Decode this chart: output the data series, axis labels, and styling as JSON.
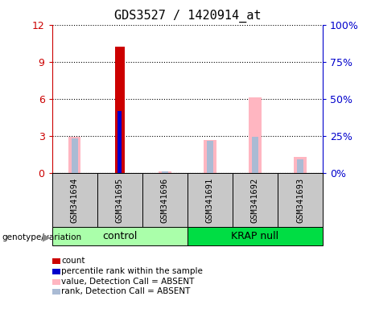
{
  "title": "GDS3527 / 1420914_at",
  "samples": [
    "GSM341694",
    "GSM341695",
    "GSM341696",
    "GSM341691",
    "GSM341692",
    "GSM341693"
  ],
  "groups": [
    "control",
    "control",
    "control",
    "KRAP null",
    "KRAP null",
    "KRAP null"
  ],
  "ylim_left": [
    0,
    12
  ],
  "ylim_right": [
    0,
    100
  ],
  "yticks_left": [
    0,
    3,
    6,
    9,
    12
  ],
  "ytick_labels_left": [
    "0",
    "3",
    "6",
    "9",
    "12"
  ],
  "yticks_right": [
    0,
    25,
    50,
    75,
    100
  ],
  "ytick_labels_right": [
    "0%",
    "25%",
    "50%",
    "75%",
    "100%"
  ],
  "count_values": [
    0,
    10.2,
    0,
    0,
    0,
    0
  ],
  "percentile_values": [
    0,
    5.0,
    0,
    0,
    0,
    0
  ],
  "absent_value_values": [
    2.9,
    0,
    0.12,
    2.7,
    6.1,
    1.3
  ],
  "absent_rank_values": [
    2.8,
    0,
    0.12,
    2.6,
    2.9,
    1.1
  ],
  "absent_bar_width": 0.28,
  "rank_bar_width": 0.14,
  "count_bar_width": 0.22,
  "pct_bar_width": 0.1,
  "count_color": "#CC0000",
  "percentile_color": "#0000CC",
  "absent_value_color": "#FFB6C1",
  "absent_rank_color": "#AABBD4",
  "bg_color": "#FFFFFF",
  "plot_bg_color": "#FFFFFF",
  "tick_label_color_left": "#CC0000",
  "tick_label_color_right": "#0000CC",
  "control_color": "#AAFFAA",
  "krap_color": "#00DD44",
  "sample_box_color": "#C8C8C8"
}
